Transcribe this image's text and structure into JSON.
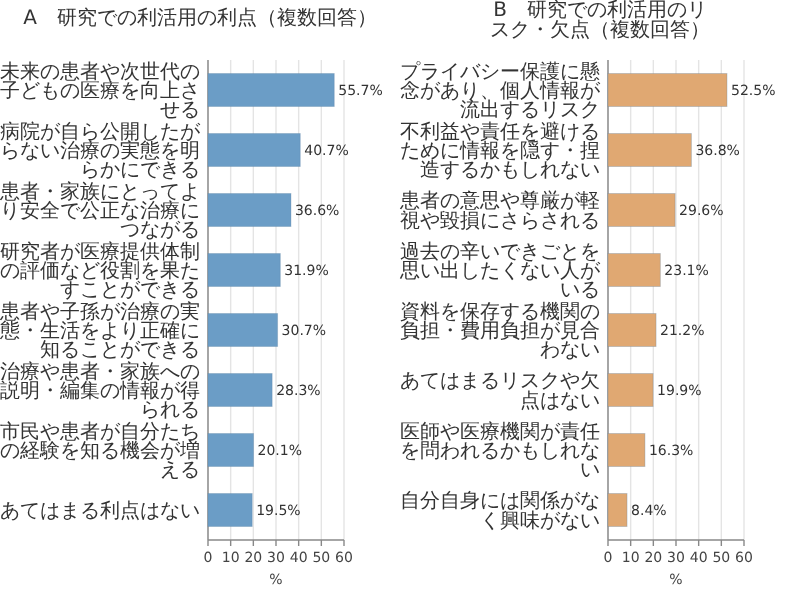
{
  "chart_data": [
    {
      "type": "bar",
      "orientation": "horizontal",
      "title": "A　研究での利活用の利点（複数回答）",
      "xlabel": "%",
      "categories": [
        "未来の患者や次世代の子どもの医療を向上させる",
        "病院が自ら公開したがらない治療の実態を明らかにできる",
        "患者・家族にとってより安全で公正な治療につながる",
        "研究者が医療提供体制の評価など役割を果たすことができる",
        "患者や子孫が治療の実態・生活をより正確に知ることができる",
        "治療や患者・家族への説明・編集の情報が得られる",
        "市民や患者が自分たちの経験を知る機会が増える",
        "あてはまる利点はない"
      ],
      "values": [
        55.7,
        40.7,
        36.6,
        31.9,
        30.7,
        28.3,
        20.1,
        19.5
      ],
      "value_labels": [
        "55.7%",
        "40.7%",
        "36.6%",
        "31.9%",
        "30.7%",
        "28.3%",
        "20.1%",
        "19.5%"
      ],
      "color": "#6b9dc6",
      "xlim": [
        0,
        60
      ],
      "xticks": [
        0,
        10,
        20,
        30,
        40,
        50,
        60
      ],
      "grid": "x"
    },
    {
      "type": "bar",
      "orientation": "horizontal",
      "title": "B　研究での利活用のリスク・欠点（複数回答）",
      "xlabel": "%",
      "categories": [
        "プライバシー保護に懸念があり、個人情報が流出するリスク",
        "不利益や責任を避けるために情報を隠す・捏造するかもしれない",
        "患者の意思や尊厳が軽視や毀損にさらされる",
        "過去の辛いできごとを思い出したくない人がいる",
        "資料を保存する機関の負担・費用負担が見合わない",
        "あてはまるリスクや欠点はない",
        "医師や医療機関が責任を問われるかもしれない",
        "自分自身には関係がなく興味がない"
      ],
      "values": [
        52.5,
        36.8,
        29.6,
        23.1,
        21.2,
        19.9,
        16.3,
        8.4
      ],
      "value_labels": [
        "52.5%",
        "36.8%",
        "29.6%",
        "23.1%",
        "21.2%",
        "19.9%",
        "16.3%",
        "8.4%"
      ],
      "color": "#e0a872",
      "xlim": [
        0,
        60
      ],
      "xticks": [
        0,
        10,
        20,
        30,
        40,
        50,
        60
      ],
      "grid": "x"
    }
  ]
}
